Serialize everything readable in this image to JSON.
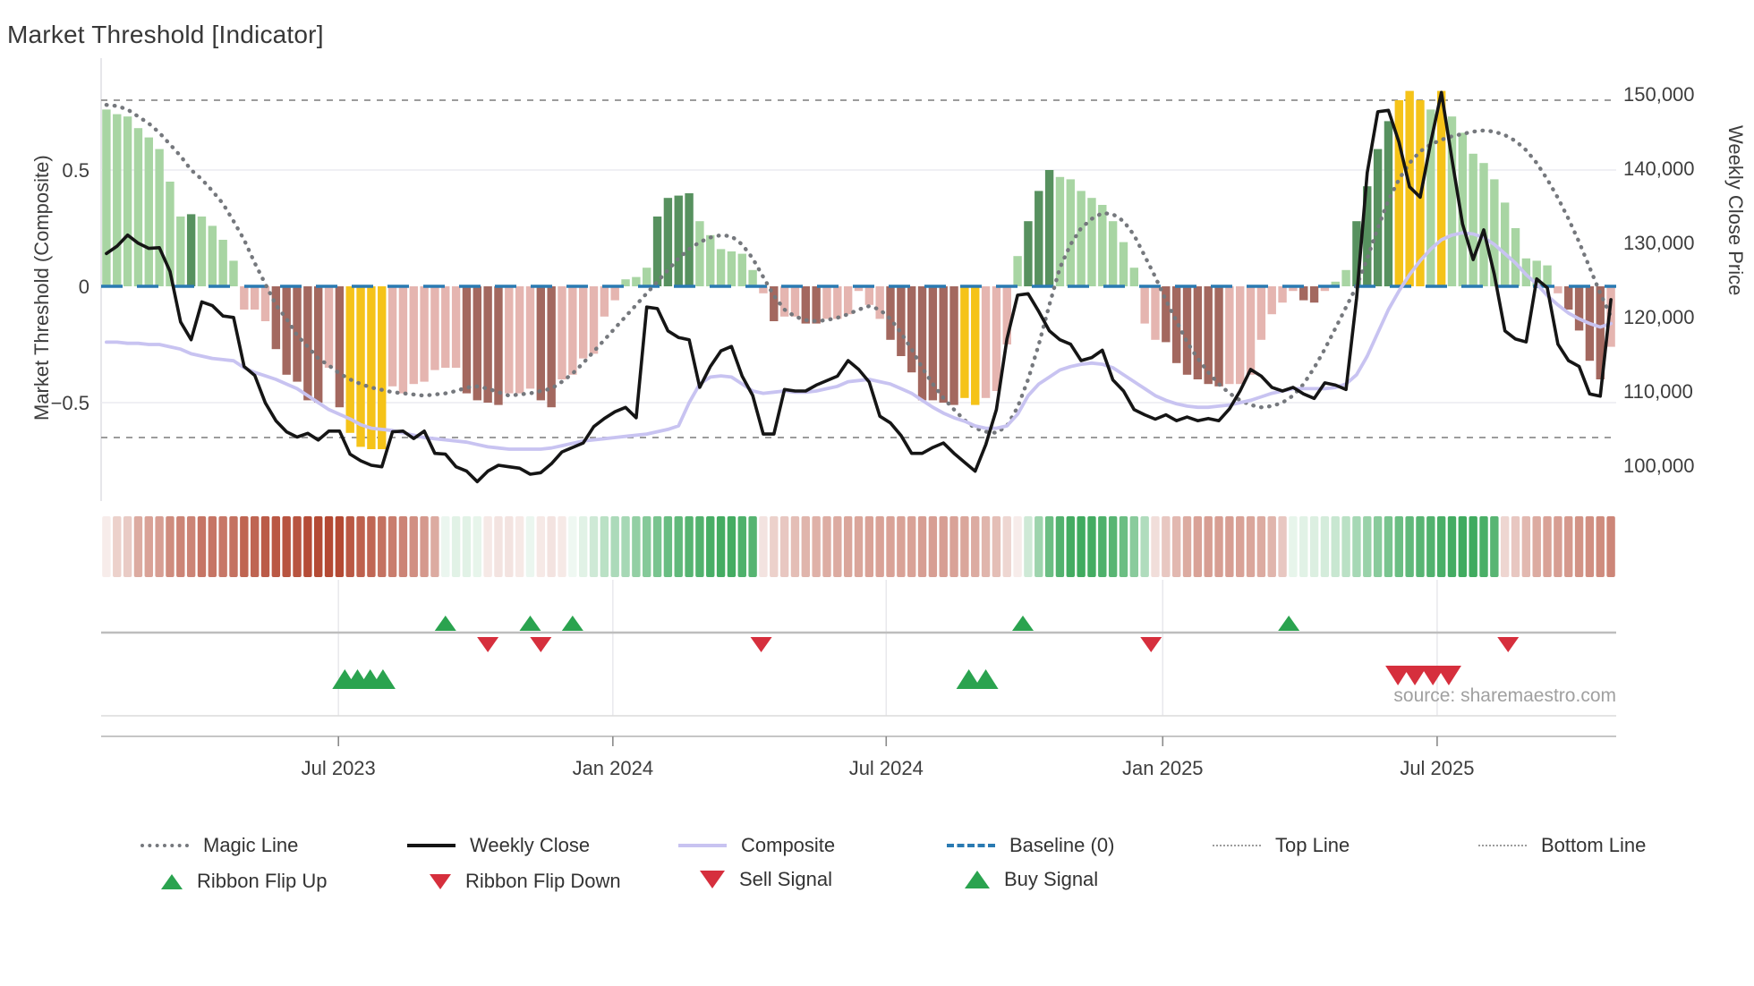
{
  "title": "Market Threshold [Indicator]",
  "source": "source: sharemaestro.com",
  "axes": {
    "left_label": "Market Threshold (Composite)",
    "right_label": "Weekly Close Price",
    "left_ticks": [
      {
        "label": "0.5",
        "value": 0.5
      },
      {
        "label": "0",
        "value": 0
      },
      {
        "label": "−0.5",
        "value": -0.5
      }
    ],
    "right_ticks": [
      {
        "label": "150,000",
        "value": 150000
      },
      {
        "label": "140,000",
        "value": 140000
      },
      {
        "label": "130,000",
        "value": 130000
      },
      {
        "label": "120,000",
        "value": 120000
      },
      {
        "label": "110,000",
        "value": 110000
      },
      {
        "label": "100,000",
        "value": 100000
      }
    ],
    "x_ticks": [
      {
        "label": "Jul 2023",
        "week": 21.9
      },
      {
        "label": "Jan 2024",
        "week": 47.8
      },
      {
        "label": "Jul 2024",
        "week": 73.6
      },
      {
        "label": "Jan 2025",
        "week": 99.7
      },
      {
        "label": "Jul 2025",
        "week": 125.6
      }
    ]
  },
  "legend": {
    "row1": [
      {
        "label": "Magic Line",
        "swatch": "magic"
      },
      {
        "label": "Weekly Close",
        "swatch": "close"
      },
      {
        "label": "Composite",
        "swatch": "comp"
      },
      {
        "label": "Baseline (0)",
        "swatch": "base"
      },
      {
        "label": "Top Line",
        "swatch": "thin"
      },
      {
        "label": "Bottom Line",
        "swatch": "thin"
      }
    ],
    "row2": [
      {
        "label": "Ribbon Flip Up",
        "marker": "up"
      },
      {
        "label": "Ribbon Flip Down",
        "marker": "down"
      },
      {
        "label": "Sell Signal",
        "marker": "bigdown"
      },
      {
        "label": "Buy Signal",
        "marker": "bigup"
      }
    ]
  },
  "chart_data": {
    "type": "bar+line combo with ribbon heatmap and signal markers",
    "title": "Market Threshold [Indicator]",
    "x_axis": "weekly dates Feb 2023 - Oct 2025",
    "left_axis_range": [
      -0.92,
      0.98
    ],
    "right_axis_range": [
      95200,
      154800
    ],
    "baseline": 0,
    "top_line": 0.8,
    "bottom_line": -0.65,
    "weeks": 143,
    "bars": {
      "name": "Market Threshold composite histogram",
      "values": [
        0.76,
        0.74,
        0.73,
        0.68,
        0.64,
        0.59,
        0.45,
        0.3,
        0.31,
        0.3,
        0.26,
        0.2,
        0.11,
        -0.1,
        -0.1,
        -0.15,
        -0.27,
        -0.38,
        -0.41,
        -0.49,
        -0.5,
        -0.35,
        -0.52,
        -0.63,
        -0.69,
        -0.7,
        -0.7,
        -0.43,
        -0.46,
        -0.42,
        -0.41,
        -0.36,
        -0.35,
        -0.35,
        -0.46,
        -0.49,
        -0.5,
        -0.51,
        -0.46,
        -0.46,
        -0.44,
        -0.49,
        -0.52,
        -0.4,
        -0.38,
        -0.31,
        -0.29,
        -0.13,
        -0.06,
        0.03,
        0.04,
        0.08,
        0.3,
        0.38,
        0.39,
        0.4,
        0.28,
        0.22,
        0.16,
        0.15,
        0.14,
        0.07,
        -0.03,
        -0.15,
        -0.13,
        -0.13,
        -0.16,
        -0.16,
        -0.14,
        -0.14,
        -0.12,
        -0.02,
        -0.08,
        -0.14,
        -0.23,
        -0.3,
        -0.37,
        -0.49,
        -0.49,
        -0.5,
        -0.51,
        -0.48,
        -0.51,
        -0.48,
        -0.45,
        -0.25,
        0.13,
        0.28,
        0.41,
        0.5,
        0.47,
        0.46,
        0.41,
        0.38,
        0.35,
        0.28,
        0.19,
        0.08,
        -0.16,
        -0.23,
        -0.24,
        -0.33,
        -0.38,
        -0.4,
        -0.42,
        -0.43,
        -0.42,
        -0.42,
        -0.38,
        -0.23,
        -0.12,
        -0.07,
        -0.02,
        -0.06,
        -0.07,
        -0.02,
        0.02,
        0.07,
        0.28,
        0.43,
        0.59,
        0.71,
        0.8,
        0.84,
        0.8,
        0.76,
        0.84,
        0.73,
        0.66,
        0.57,
        0.53,
        0.46,
        0.36,
        0.25,
        0.12,
        0.11,
        0.09,
        -0.03,
        -0.1,
        -0.19,
        -0.32,
        -0.4,
        -0.26
      ],
      "classes": "ggggggggGggggpppbbbbbpbyyyypppppppbbbbpppbbppppppgggGGGGggggggpbppbbppppppbbbbbbbyypppgGGGggggggggppbbbbbbpppppppbbpggGGGGyyygygggggggggg pbbbbp",
      "class_legend": {
        "g": "light-green",
        "G": "dark-green",
        "p": "light-pink",
        "b": "dark-red",
        "y": "yellow-highlight"
      }
    },
    "weekly_close": [
      128500,
      129500,
      131000,
      129900,
      129200,
      129300,
      126100,
      119300,
      116900,
      122000,
      121500,
      120100,
      119900,
      113300,
      112100,
      108400,
      106000,
      104500,
      103800,
      104300,
      103400,
      104600,
      104600,
      101500,
      100600,
      100000,
      99800,
      104500,
      104600,
      103600,
      104600,
      101600,
      101500,
      99800,
      99200,
      97800,
      99200,
      100000,
      99800,
      99600,
      98800,
      99000,
      100200,
      101800,
      102400,
      103000,
      105200,
      106300,
      107200,
      107800,
      106400,
      121300,
      121100,
      118100,
      117200,
      116900,
      110500,
      113300,
      115400,
      116000,
      112000,
      109400,
      104200,
      104200,
      110200,
      110000,
      110000,
      110800,
      111400,
      112000,
      114100,
      112900,
      111200,
      106600,
      105700,
      104000,
      101600,
      101600,
      102400,
      103000,
      101600,
      100400,
      99200,
      102800,
      107500,
      117000,
      122900,
      123100,
      120700,
      118100,
      116900,
      116300,
      114100,
      114500,
      115500,
      111500,
      110000,
      107500,
      106800,
      106200,
      106800,
      106000,
      106500,
      106000,
      106300,
      106000,
      107600,
      110000,
      112900,
      112000,
      110500,
      110000,
      110500,
      109600,
      109000,
      111100,
      110800,
      110200,
      122500,
      139400,
      147600,
      147800,
      143500,
      137500,
      136100,
      143500,
      150200,
      141200,
      132500,
      127700,
      131700,
      125700,
      118100,
      117000,
      116600,
      125100,
      123900,
      116300,
      114100,
      113300,
      109600,
      109300,
      122300
    ],
    "composite_line": [
      -0.24,
      -0.24,
      -0.245,
      -0.245,
      -0.25,
      -0.25,
      -0.26,
      -0.27,
      -0.29,
      -0.3,
      -0.31,
      -0.315,
      -0.32,
      -0.35,
      -0.37,
      -0.385,
      -0.4,
      -0.42,
      -0.44,
      -0.47,
      -0.5,
      -0.53,
      -0.55,
      -0.57,
      -0.595,
      -0.61,
      -0.615,
      -0.62,
      -0.63,
      -0.64,
      -0.65,
      -0.655,
      -0.66,
      -0.665,
      -0.67,
      -0.68,
      -0.69,
      -0.695,
      -0.7,
      -0.7,
      -0.7,
      -0.7,
      -0.695,
      -0.685,
      -0.675,
      -0.665,
      -0.66,
      -0.655,
      -0.65,
      -0.645,
      -0.64,
      -0.635,
      -0.625,
      -0.615,
      -0.6,
      -0.5,
      -0.42,
      -0.39,
      -0.385,
      -0.39,
      -0.42,
      -0.45,
      -0.46,
      -0.455,
      -0.45,
      -0.455,
      -0.455,
      -0.45,
      -0.44,
      -0.43,
      -0.41,
      -0.405,
      -0.4,
      -0.41,
      -0.42,
      -0.44,
      -0.46,
      -0.49,
      -0.52,
      -0.545,
      -0.565,
      -0.58,
      -0.6,
      -0.61,
      -0.61,
      -0.6,
      -0.55,
      -0.47,
      -0.42,
      -0.39,
      -0.36,
      -0.345,
      -0.335,
      -0.33,
      -0.335,
      -0.35,
      -0.38,
      -0.41,
      -0.44,
      -0.47,
      -0.49,
      -0.505,
      -0.515,
      -0.52,
      -0.52,
      -0.515,
      -0.51,
      -0.5,
      -0.49,
      -0.475,
      -0.46,
      -0.45,
      -0.44,
      -0.44,
      -0.44,
      -0.44,
      -0.435,
      -0.42,
      -0.38,
      -0.3,
      -0.2,
      -0.1,
      -0.02,
      0.05,
      0.11,
      0.16,
      0.2,
      0.22,
      0.23,
      0.225,
      0.21,
      0.18,
      0.14,
      0.1,
      0.05,
      0.01,
      -0.04,
      -0.08,
      -0.115,
      -0.14,
      -0.16,
      -0.175,
      -0.16
    ],
    "magic_line": [
      0.78,
      0.775,
      0.76,
      0.73,
      0.7,
      0.66,
      0.61,
      0.56,
      0.5,
      0.46,
      0.41,
      0.355,
      0.28,
      0.2,
      0.1,
      0.01,
      -0.08,
      -0.14,
      -0.21,
      -0.26,
      -0.31,
      -0.34,
      -0.375,
      -0.4,
      -0.42,
      -0.435,
      -0.445,
      -0.455,
      -0.46,
      -0.465,
      -0.47,
      -0.465,
      -0.46,
      -0.45,
      -0.435,
      -0.43,
      -0.44,
      -0.455,
      -0.47,
      -0.465,
      -0.46,
      -0.45,
      -0.44,
      -0.41,
      -0.375,
      -0.33,
      -0.28,
      -0.23,
      -0.18,
      -0.13,
      -0.08,
      -0.03,
      0.02,
      0.07,
      0.12,
      0.16,
      0.19,
      0.21,
      0.22,
      0.215,
      0.18,
      0.12,
      0.04,
      -0.04,
      -0.1,
      -0.13,
      -0.145,
      -0.15,
      -0.145,
      -0.135,
      -0.12,
      -0.1,
      -0.085,
      -0.1,
      -0.14,
      -0.2,
      -0.27,
      -0.35,
      -0.42,
      -0.48,
      -0.53,
      -0.575,
      -0.61,
      -0.625,
      -0.63,
      -0.6,
      -0.52,
      -0.4,
      -0.25,
      -0.08,
      0.08,
      0.18,
      0.25,
      0.29,
      0.315,
      0.31,
      0.28,
      0.22,
      0.13,
      0.04,
      -0.06,
      -0.15,
      -0.24,
      -0.31,
      -0.37,
      -0.42,
      -0.46,
      -0.49,
      -0.51,
      -0.52,
      -0.515,
      -0.5,
      -0.47,
      -0.42,
      -0.35,
      -0.27,
      -0.18,
      -0.09,
      0.0,
      0.12,
      0.25,
      0.37,
      0.46,
      0.53,
      0.58,
      0.61,
      0.63,
      0.645,
      0.655,
      0.665,
      0.67,
      0.665,
      0.65,
      0.625,
      0.585,
      0.53,
      0.46,
      0.38,
      0.29,
      0.19,
      0.08,
      -0.03,
      -0.13
    ],
    "ribbon": [
      -0.1,
      -0.25,
      -0.28,
      -0.45,
      -0.5,
      -0.52,
      -0.62,
      -0.66,
      -0.66,
      -0.74,
      -0.74,
      -0.73,
      -0.76,
      -0.83,
      -0.83,
      -0.88,
      -0.9,
      -0.92,
      -0.92,
      -0.96,
      -0.97,
      -0.98,
      -0.98,
      -0.9,
      -0.85,
      -0.82,
      -0.76,
      -0.7,
      -0.66,
      -0.6,
      -0.55,
      -0.45,
      0.1,
      0.15,
      0.15,
      0.12,
      -0.12,
      -0.15,
      -0.15,
      -0.12,
      0.1,
      -0.12,
      -0.15,
      -0.12,
      0.08,
      0.15,
      0.25,
      0.35,
      0.42,
      0.45,
      0.55,
      0.62,
      0.68,
      0.76,
      0.8,
      0.86,
      0.88,
      0.93,
      0.95,
      0.95,
      0.9,
      0.86,
      -0.15,
      -0.25,
      -0.3,
      -0.35,
      -0.4,
      -0.42,
      -0.44,
      -0.45,
      -0.48,
      -0.48,
      -0.5,
      -0.5,
      -0.5,
      -0.5,
      -0.5,
      -0.52,
      -0.52,
      -0.52,
      -0.5,
      -0.48,
      -0.45,
      -0.4,
      -0.35,
      -0.22,
      -0.1,
      0.25,
      0.5,
      0.75,
      0.88,
      0.95,
      0.97,
      0.95,
      0.9,
      0.85,
      0.75,
      0.6,
      0.4,
      -0.18,
      -0.3,
      -0.38,
      -0.45,
      -0.5,
      -0.52,
      -0.52,
      -0.52,
      -0.5,
      -0.48,
      -0.45,
      -0.4,
      -0.3,
      0.12,
      0.15,
      0.18,
      0.22,
      0.28,
      0.35,
      0.45,
      0.52,
      0.6,
      0.68,
      0.75,
      0.8,
      0.85,
      0.88,
      0.92,
      0.95,
      0.97,
      0.97,
      0.92,
      0.85,
      -0.22,
      -0.3,
      -0.38,
      -0.45,
      -0.5,
      -0.52,
      -0.55,
      -0.58,
      -0.6,
      -0.62,
      -0.65
    ],
    "signals": {
      "ribbon_flip_up_weeks": [
        32,
        40,
        44,
        86.5,
        111.6
      ],
      "ribbon_flip_down_weeks": [
        36,
        41,
        61.8,
        98.6,
        132.3
      ],
      "buy_signal_weeks": [
        22.5,
        23.7,
        24.9,
        26.1,
        81.4,
        83.0
      ],
      "sell_signal_weeks": [
        121.9,
        123.5,
        125.2,
        126.7
      ]
    },
    "colors": {
      "bar_light_green": "#a8d5a3",
      "bar_dark_green": "#57915f",
      "bar_pink": "#e5b5b0",
      "bar_dark_red": "#a3685f",
      "bar_yellow": "#f5c319",
      "weekly_close": "#151515",
      "composite": "#c8c3f1",
      "magic": "#75787d",
      "baseline": "#2a7ab2",
      "top_bottom": "#9c9c9c",
      "marker_green": "#2aa34f",
      "marker_red": "#d62f3d",
      "ribbon_deep_red": "#b2452f",
      "ribbon_deep_green": "#3aa85a"
    },
    "legend_position": "bottom",
    "grid": "horizontal at 0.5 / -0.5 only; vertical gridlines in signal panel"
  }
}
